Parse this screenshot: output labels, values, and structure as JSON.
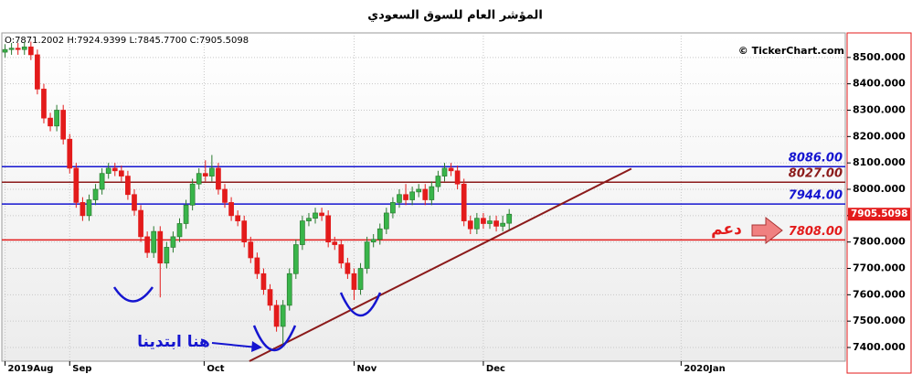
{
  "chart_data": {
    "type": "candlestick",
    "title": "المؤشر العام للسوق السعودي",
    "ohlc_text": "O:7871.2002 H:7924.9399 L:7845.7700 C:7905.5098",
    "source": "© TickerChart.com",
    "ylim": [
      7348,
      8593
    ],
    "yticks": [
      {
        "value": 7400,
        "label": "7400.000"
      },
      {
        "value": 7500,
        "label": "7500.000"
      },
      {
        "value": 7600,
        "label": "7600.000"
      },
      {
        "value": 7700,
        "label": "7700.000"
      },
      {
        "value": 7800,
        "label": "7800.000"
      },
      {
        "value": 7900,
        "label": "7900.000"
      },
      {
        "value": 8000,
        "label": "8000.000"
      },
      {
        "value": 8100,
        "label": "8100.000"
      },
      {
        "value": 8200,
        "label": "8200.000"
      },
      {
        "value": 8300,
        "label": "8300.000"
      },
      {
        "value": 8400,
        "label": "8400.000"
      },
      {
        "value": 8500,
        "label": "8500.000"
      }
    ],
    "xlim": [
      -0.5,
      130
    ],
    "xticks": [
      {
        "value": 0,
        "label": "2019Aug"
      },
      {
        "value": 10,
        "label": "Sep"
      },
      {
        "value": 30.8,
        "label": "Oct"
      },
      {
        "value": 54,
        "label": "Nov"
      },
      {
        "value": 74,
        "label": "Dec"
      },
      {
        "value": 104.6,
        "label": "2020Jan"
      }
    ],
    "grid": true,
    "up_color": "#39b54a",
    "down_color": "#e31b1b",
    "open": [
      8520,
      8530,
      8535,
      8530,
      8540,
      8510,
      8380,
      8270,
      8240,
      8300,
      8190,
      8080,
      7950,
      7900,
      7960,
      8000,
      8060,
      8080,
      8070,
      8050,
      7980,
      7920,
      7820,
      7760,
      7840,
      7720,
      7780,
      7820,
      7870,
      7940,
      8020,
      8060,
      8050,
      8080,
      8000,
      7950,
      7900,
      7880,
      7800,
      7740,
      7680,
      7620,
      7560,
      7480,
      7560,
      7680,
      7790,
      7880,
      7890,
      7910,
      7900,
      7800,
      7790,
      7720,
      7680,
      7620,
      7700,
      7800,
      7810,
      7850,
      7910,
      7950,
      7980,
      7960,
      7990,
      8000,
      7960,
      8010,
      8050,
      8080,
      8070,
      8020,
      7880,
      7850,
      7890,
      7870,
      7880,
      7860,
      7871.2002
    ],
    "high": [
      8550,
      8555,
      8555,
      8560,
      8560,
      8530,
      8400,
      8290,
      8320,
      8320,
      8210,
      8100,
      7970,
      7980,
      8020,
      8080,
      8100,
      8100,
      8090,
      8070,
      8000,
      7940,
      7840,
      7860,
      7860,
      7800,
      7840,
      7890,
      7960,
      8040,
      8080,
      8110,
      8130,
      8100,
      8020,
      7970,
      7920,
      7900,
      7820,
      7760,
      7700,
      7640,
      7580,
      7580,
      7700,
      7810,
      7900,
      7910,
      7930,
      7930,
      7920,
      7820,
      7810,
      7740,
      7700,
      7720,
      7820,
      7830,
      7870,
      7930,
      7970,
      8000,
      8020,
      8010,
      8020,
      8020,
      8030,
      8070,
      8100,
      8100,
      8090,
      8040,
      7900,
      7910,
      7910,
      7900,
      7900,
      7900,
      7924.9399
    ],
    "low": [
      8500,
      8510,
      8510,
      8510,
      8490,
      8360,
      8250,
      8220,
      8220,
      8170,
      8060,
      7930,
      7880,
      7880,
      7940,
      7980,
      8040,
      8050,
      8030,
      7960,
      7900,
      7800,
      7740,
      7740,
      7590,
      7700,
      7760,
      7800,
      7850,
      7920,
      8000,
      8030,
      8030,
      7980,
      7930,
      7880,
      7860,
      7780,
      7720,
      7660,
      7600,
      7540,
      7460,
      7410,
      7540,
      7660,
      7770,
      7860,
      7870,
      7880,
      7780,
      7770,
      7700,
      7660,
      7580,
      7600,
      7680,
      7780,
      7790,
      7830,
      7890,
      7930,
      7940,
      7940,
      7970,
      7940,
      7940,
      7990,
      8030,
      8050,
      8000,
      7860,
      7830,
      7830,
      7850,
      7850,
      7840,
      7840,
      7845.77
    ],
    "close": [
      8530,
      8535,
      8530,
      8540,
      8510,
      8380,
      8270,
      8240,
      8300,
      8190,
      8080,
      7950,
      7900,
      7960,
      8000,
      8060,
      8080,
      8070,
      8050,
      7980,
      7920,
      7820,
      7760,
      7840,
      7720,
      7780,
      7820,
      7870,
      7940,
      8020,
      8060,
      8050,
      8080,
      8000,
      7950,
      7900,
      7880,
      7800,
      7740,
      7680,
      7620,
      7560,
      7480,
      7560,
      7680,
      7790,
      7880,
      7890,
      7910,
      7900,
      7800,
      7790,
      7720,
      7680,
      7620,
      7700,
      7800,
      7810,
      7850,
      7910,
      7950,
      7980,
      7960,
      7990,
      8000,
      7960,
      8010,
      8050,
      8080,
      8070,
      8020,
      7880,
      7850,
      7890,
      7870,
      7880,
      7860,
      7871.2002,
      7905.5098
    ],
    "levels": [
      {
        "value": 8086,
        "label": "8086.00",
        "color": "#1515d0"
      },
      {
        "value": 8027,
        "label": "8027.00",
        "color": "#8b1a1a"
      },
      {
        "value": 7944,
        "label": "7944.00",
        "color": "#1515d0"
      },
      {
        "value": 7808,
        "label": "7808.00",
        "color": "#e31b1b"
      }
    ],
    "trendline": {
      "x": [
        37.8,
        96.9
      ],
      "y": [
        7348,
        8078
      ],
      "color": "#8b1a1a"
    },
    "support_label": "دعم",
    "start_label": "هنا ابتدينا"
  }
}
